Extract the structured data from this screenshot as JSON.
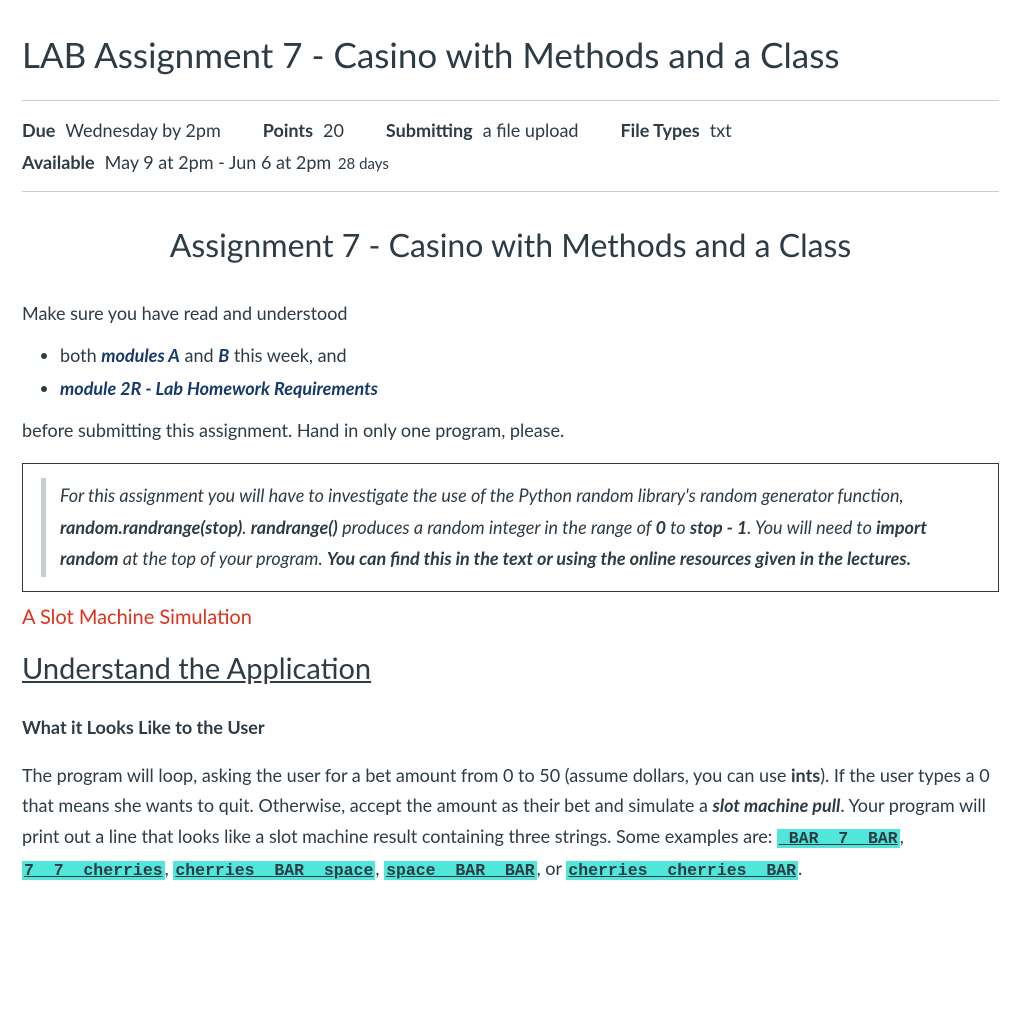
{
  "page": {
    "title": "LAB Assignment 7 - Casino with Methods and a Class"
  },
  "meta": {
    "due_label": "Due",
    "due_value": "Wednesday by 2pm",
    "points_label": "Points",
    "points_value": "20",
    "submitting_label": "Submitting",
    "submitting_value": "a file upload",
    "filetypes_label": "File Types",
    "filetypes_value": "txt",
    "available_label": "Available",
    "available_value": "May 9 at 2pm - Jun 6 at 2pm",
    "available_sub": "28 days"
  },
  "content": {
    "heading": "Assignment 7 - Casino with Methods and a Class",
    "intro_text": "Make sure you have read and understood",
    "bullets": {
      "b1_prefix": "both ",
      "b1_link": "modules A",
      "b1_mid": " and ",
      "b1_link2": "B",
      "b1_suffix": " this week, and",
      "b2_link": "module 2R - Lab Homework Requirements"
    },
    "after_bullets": "before submitting this assignment. Hand in only one program, please.",
    "callout": {
      "p1a": "For this assignment you will have to investigate the use of the Python random library's random generator function, ",
      "p1b": "random.randrange(stop)",
      "p1c": ".  ",
      "p1d": "randrange()",
      "p1e": " produces a random integer in the range of ",
      "p1f": "0",
      "p1g": " to ",
      "p1h": "stop - 1",
      "p1i": ".   You will need to ",
      "p1j": "import random",
      "p1k": " at the top of your program. ",
      "p1l": "You can find this in the text or using the online resources given in the lectures."
    },
    "red_heading": "A Slot Machine Simulation",
    "underline_heading": "Understand the Application",
    "sub_heading": "What it Looks Like to the User",
    "body": {
      "t1": "The program will loop, asking the user for a bet amount from 0 to 50  (assume dollars, you can use ",
      "t2": "ints",
      "t3": ").  If the user types a 0 that means she wants to quit.  Otherwise, accept the amount as their bet and simulate a ",
      "t4": "slot machine pull",
      "t5": ".  Your program will print out a line that looks like a slot machine result containing three strings.  Some examples are:",
      "comma": ", ",
      "or": ", or ",
      "period": "."
    },
    "slots": {
      "s1": " BAR  7  BAR",
      "s2": "7  7  cherries",
      "s3": "cherries  BAR  space",
      "s4": "space  BAR  BAR",
      "s5": "cherries  cherries  BAR"
    }
  }
}
